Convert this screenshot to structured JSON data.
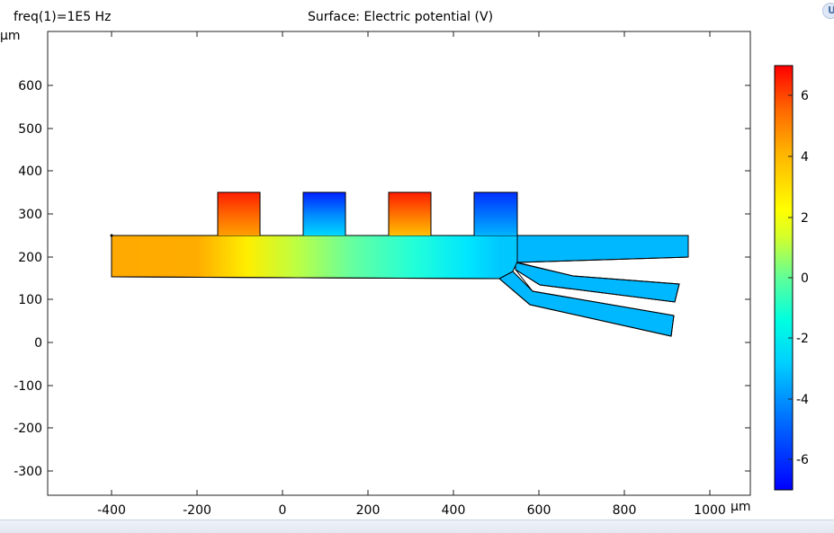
{
  "header": {
    "freq_label": "freq(1)=1E5 Hz",
    "title": "Surface: Electric potential (V)"
  },
  "axes": {
    "unit_y": "μm",
    "unit_x": "μm",
    "x_ticks": [
      "-400",
      "-200",
      "0",
      "200",
      "400",
      "600",
      "800",
      "1000"
    ],
    "y_ticks": [
      "600",
      "500",
      "400",
      "300",
      "200",
      "100",
      "0",
      "-100",
      "-200",
      "-300"
    ]
  },
  "colorbar": {
    "ticks": [
      "6",
      "4",
      "2",
      "0",
      "-2",
      "-4",
      "-6"
    ],
    "colors": [
      "#0000ff",
      "#0064ff",
      "#00c8ff",
      "#00ffd8",
      "#60ff98",
      "#d8ff28",
      "#ffff00",
      "#ffb400",
      "#ff6400",
      "#ff0000"
    ]
  },
  "chart_data": {
    "type": "heatmap",
    "title": "Surface: Electric potential (V)",
    "xlabel": "μm",
    "ylabel": "μm",
    "xlim": [
      -560,
      1090
    ],
    "ylim": [
      -360,
      720
    ],
    "color_range": [
      -7,
      7
    ],
    "electrodes": [
      {
        "x_range": [
          -150,
          -50
        ],
        "y_range": [
          250,
          350
        ],
        "potential": 7
      },
      {
        "x_range": [
          50,
          150
        ],
        "y_range": [
          250,
          350
        ],
        "potential": -7
      },
      {
        "x_range": [
          250,
          350
        ],
        "y_range": [
          250,
          350
        ],
        "potential": 7
      },
      {
        "x_range": [
          450,
          550
        ],
        "y_range": [
          250,
          350
        ],
        "potential": -7
      }
    ],
    "channel": {
      "x_range": [
        -400,
        550
      ],
      "y_range": [
        155,
        250
      ]
    },
    "outlets": [
      {
        "name_region": "upper",
        "potential_approx": -4
      },
      {
        "name_region": "middle",
        "potential_approx": -4
      },
      {
        "name_region": "lower",
        "potential_approx": -4
      }
    ],
    "inlet_potential_approx": 4
  },
  "corner_button": {
    "glyph": "U"
  }
}
